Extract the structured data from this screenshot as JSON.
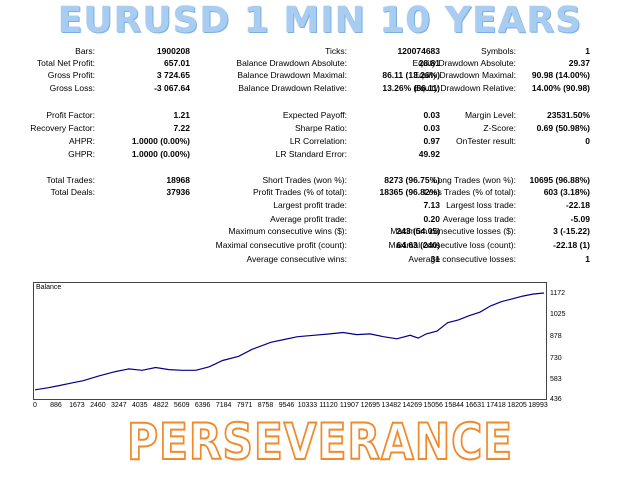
{
  "title": "EURUSD 1 MIN 10 YEARS",
  "footer": "PERSEVERANCE",
  "stats": [
    [
      "Bars:",
      "1900208",
      "Ticks:",
      "120074683",
      "Symbols:",
      "1"
    ],
    [
      "Total Net Profit:",
      "657.01",
      "Balance Drawdown Absolute:",
      "28.81",
      "Equity Drawdown Absolute:",
      "29.37"
    ],
    [
      "Gross Profit:",
      "3 724.65",
      "Balance Drawdown Maximal:",
      "86.11 (13.26%)",
      "Equity Drawdown Maximal:",
      "90.98 (14.00%)"
    ],
    [
      "Gross Loss:",
      "-3 067.64",
      "Balance Drawdown Relative:",
      "13.26% (86.11)",
      "Equity Drawdown Relative:",
      "14.00% (90.98)"
    ],
    [
      "Profit Factor:",
      "1.21",
      "Expected Payoff:",
      "0.03",
      "Margin Level:",
      "23531.50%"
    ],
    [
      "Recovery Factor:",
      "7.22",
      "Sharpe Ratio:",
      "0.03",
      "Z-Score:",
      "0.69 (50.98%)"
    ],
    [
      "AHPR:",
      "1.0000 (0.00%)",
      "LR Correlation:",
      "0.97",
      "OnTester result:",
      "0"
    ],
    [
      "GHPR:",
      "1.0000 (0.00%)",
      "LR Standard Error:",
      "49.92",
      "",
      ""
    ],
    [
      "Total Trades:",
      "18968",
      "Short Trades (won %):",
      "8273 (96.75%)",
      "Long Trades (won %):",
      "10695 (96.88%)"
    ],
    [
      "Total Deals:",
      "37936",
      "Profit Trades (% of total):",
      "18365 (96.82%)",
      "Loss Trades (% of total):",
      "603 (3.18%)"
    ],
    [
      "",
      "",
      "Largest profit trade:",
      "7.13",
      "Largest loss trade:",
      "-22.18"
    ],
    [
      "",
      "",
      "Average profit trade:",
      "0.20",
      "Average loss trade:",
      "-5.09"
    ],
    [
      "",
      "",
      "Maximum consecutive wins ($):",
      "243 (54.05)",
      "Maximum consecutive losses ($):",
      "3 (-15.22)"
    ],
    [
      "",
      "",
      "Maximal consecutive profit (count):",
      "64.63 (240)",
      "Maximal consecutive loss (count):",
      "-22.18 (1)"
    ],
    [
      "",
      "",
      "Average consecutive wins:",
      "31",
      "Average consecutive losses:",
      "1"
    ]
  ],
  "chart_data": {
    "type": "line",
    "title": "Balance",
    "xlabel": "",
    "ylabel": "",
    "yticks": [
      "1172",
      "1025",
      "878",
      "730",
      "583",
      "436"
    ],
    "xticks": [
      "0",
      "886",
      "1673",
      "2460",
      "3247",
      "4035",
      "4822",
      "5609",
      "6396",
      "7184",
      "7971",
      "8758",
      "9546",
      "10333",
      "11120",
      "11907",
      "12695",
      "13482",
      "14269",
      "15056",
      "15844",
      "16631",
      "17418",
      "18205",
      "18993"
    ],
    "ylim": [
      436,
      1172
    ],
    "xlim": [
      0,
      18993
    ],
    "series": [
      {
        "name": "",
        "color": "#00008b",
        "x": [
          0,
          500,
          900,
          1400,
          1800,
          2400,
          3000,
          3500,
          4000,
          4500,
          5000,
          5500,
          6000,
          6500,
          7000,
          7600,
          8100,
          8800,
          9300,
          9800,
          10400,
          11000,
          11500,
          12000,
          12500,
          13000,
          13500,
          14000,
          14300,
          14600,
          15000,
          15400,
          15800,
          16200,
          16600,
          17000,
          17400,
          17800,
          18200,
          18600,
          18993
        ],
        "values": [
          480,
          495,
          510,
          530,
          545,
          580,
          610,
          630,
          620,
          640,
          625,
          620,
          620,
          645,
          690,
          720,
          770,
          820,
          840,
          860,
          870,
          880,
          890,
          875,
          880,
          860,
          845,
          870,
          850,
          880,
          900,
          960,
          980,
          1010,
          1035,
          1080,
          1110,
          1130,
          1150,
          1165,
          1172
        ]
      }
    ]
  }
}
